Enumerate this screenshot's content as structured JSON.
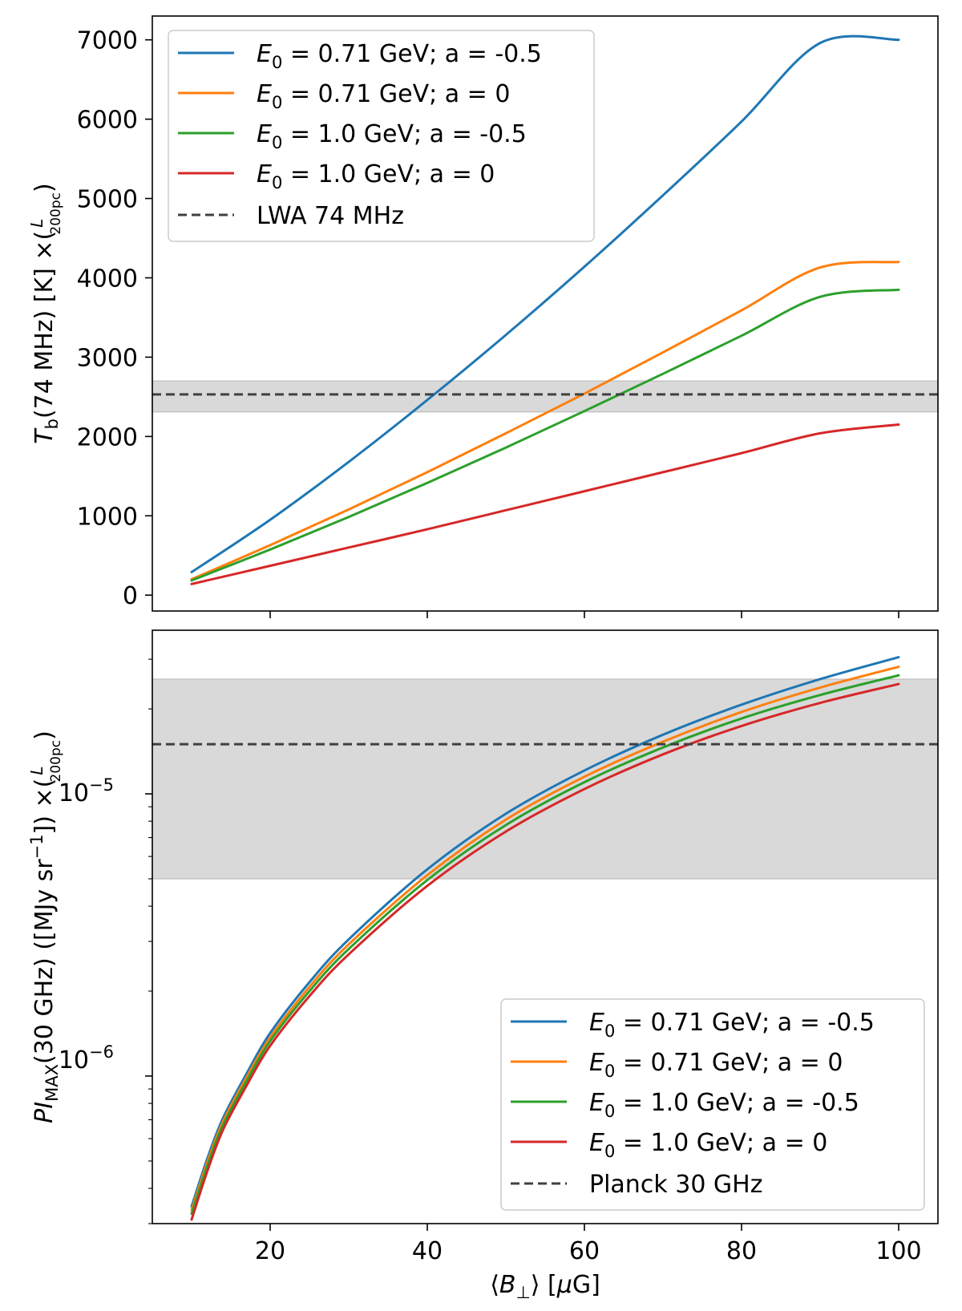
{
  "chart_data": [
    {
      "type": "line",
      "panel": "top",
      "scale": "linear",
      "x": [
        10,
        20,
        30,
        40,
        50,
        60,
        70,
        80,
        90,
        100
      ],
      "xlim": [
        5,
        105
      ],
      "xticks": [
        20,
        40,
        60,
        80,
        100
      ],
      "ylim": [
        -200,
        7300
      ],
      "yticks": [
        0,
        1000,
        2000,
        3000,
        4000,
        5000,
        6000,
        7000
      ],
      "ylabel": "T_b(74 MHz) [K] ×(L/200pc)",
      "ylabel_parts": {
        "T": "T",
        "sub": "b",
        "mid": "(74 MHz) [K] ×(",
        "frac_num": "L",
        "frac_den": "200pc",
        "close": ")"
      },
      "series": [
        {
          "name": "E_0 = 0.71 GeV; a = -0.5",
          "label_main": "E",
          "label_sub": "0",
          "label_rest": " = 0.71 GeV; a = -0.5",
          "color": "#1f77b4",
          "values": [
            290,
            950,
            1680,
            2460,
            3280,
            4140,
            5040,
            5970,
            6960,
            7000
          ]
        },
        {
          "name": "E_0 = 0.71 GeV; a = 0",
          "label_main": "E",
          "label_sub": "0",
          "label_rest": " = 0.71 GeV; a = 0",
          "color": "#ff7f0e",
          "values": [
            200,
            630,
            1080,
            1550,
            2040,
            2540,
            3060,
            3590,
            4130,
            4200
          ]
        },
        {
          "name": "E_0 = 1.0 GeV; a = -0.5",
          "label_main": "E",
          "label_sub": "0",
          "label_rest": " = 1.0 GeV; a = -0.5",
          "color": "#2ca02c",
          "values": [
            185,
            575,
            985,
            1415,
            1860,
            2320,
            2790,
            3270,
            3760,
            3850
          ]
        },
        {
          "name": "E_0 = 1.0 GeV; a = 0",
          "label_main": "E",
          "label_sub": "0",
          "label_rest": " = 1.0 GeV; a = 0",
          "color": "#d62728",
          "values": [
            140,
            370,
            600,
            830,
            1070,
            1310,
            1550,
            1790,
            2040,
            2150
          ]
        }
      ],
      "reference": {
        "name": "LWA 74 MHz",
        "value": 2530,
        "band": [
          2310,
          2700
        ],
        "color": "#404040"
      },
      "legend_position": "top-left"
    },
    {
      "type": "line",
      "panel": "bottom",
      "scale": "log",
      "x": [
        10,
        12,
        14,
        17,
        20,
        25,
        30,
        40,
        50,
        60,
        70,
        80,
        90,
        100
      ],
      "xlim": [
        5,
        105
      ],
      "xticks": [
        20,
        40,
        60,
        80,
        100
      ],
      "xlabel": "⟨B⊥⟩ [μG]",
      "xlabel_parts": {
        "open": "⟨",
        "B": "B",
        "sub": "⊥",
        "close": "⟩ [",
        "mu": "μ",
        "G": "G]"
      },
      "ylim": [
        3e-07,
        3.8e-05
      ],
      "yticks": [
        1e-06,
        1e-05
      ],
      "ytick_labels": [
        {
          "base": "10",
          "exp": "−6"
        },
        {
          "base": "10",
          "exp": "−5"
        }
      ],
      "ylabel": "PI_MAX(30 GHz) ([MJy sr^-1]) ×(L/200pc)",
      "ylabel_parts": {
        "PI": "PI",
        "sub": "MAX",
        "mid": "(30 GHz) ([MJy sr",
        "sup": "−1",
        "close1": "]) ×(",
        "frac_num": "L",
        "frac_den": "200pc",
        "close": ")"
      },
      "series": [
        {
          "name": "E_0 = 0.71 GeV; a = -0.5",
          "label_main": "E",
          "label_sub": "0",
          "label_rest": " = 0.71 GeV; a = -0.5",
          "color": "#1f77b4",
          "values": [
            3.45e-07,
            5.1e-07,
            7.1e-07,
            1.02e-06,
            1.42e-06,
            2.15e-06,
            3.05e-06,
            5.4e-06,
            8.5e-06,
            1.21e-05,
            1.62e-05,
            2.07e-05,
            2.55e-05,
            3.05e-05
          ]
        },
        {
          "name": "E_0 = 0.71 GeV; a = 0",
          "label_main": "E",
          "label_sub": "0",
          "label_rest": " = 0.71 GeV; a = 0",
          "color": "#ff7f0e",
          "values": [
            3.35e-07,
            4.95e-07,
            6.9e-07,
            9.9e-07,
            1.37e-06,
            2.07e-06,
            2.93e-06,
            5.15e-06,
            8.1e-06,
            1.15e-05,
            1.53e-05,
            1.95e-05,
            2.38e-05,
            2.82e-05
          ]
        },
        {
          "name": "E_0 = 1.0 GeV; a = -0.5",
          "label_main": "E",
          "label_sub": "0",
          "label_rest": " = 1.0 GeV; a = -0.5",
          "color": "#2ca02c",
          "values": [
            3.25e-07,
            4.8e-07,
            6.7e-07,
            9.6e-07,
            1.33e-06,
            2e-06,
            2.82e-06,
            4.95e-06,
            7.75e-06,
            1.1e-05,
            1.46e-05,
            1.85e-05,
            2.24e-05,
            2.63e-05
          ]
        },
        {
          "name": "E_0 = 1.0 GeV; a = 0",
          "label_main": "E",
          "label_sub": "0",
          "label_rest": " = 1.0 GeV; a = 0",
          "color": "#d62728",
          "values": [
            3.1e-07,
            4.6e-07,
            6.45e-07,
            9.25e-07,
            1.28e-06,
            1.92e-06,
            2.7e-06,
            4.72e-06,
            7.35e-06,
            1.04e-05,
            1.38e-05,
            1.74e-05,
            2.1e-05,
            2.45e-05
          ]
        }
      ],
      "reference": {
        "name": "Planck 30 GHz",
        "value": 1.5e-05,
        "band": [
          5e-06,
          2.55e-05
        ],
        "color": "#404040"
      },
      "legend_position": "bottom-right"
    }
  ]
}
